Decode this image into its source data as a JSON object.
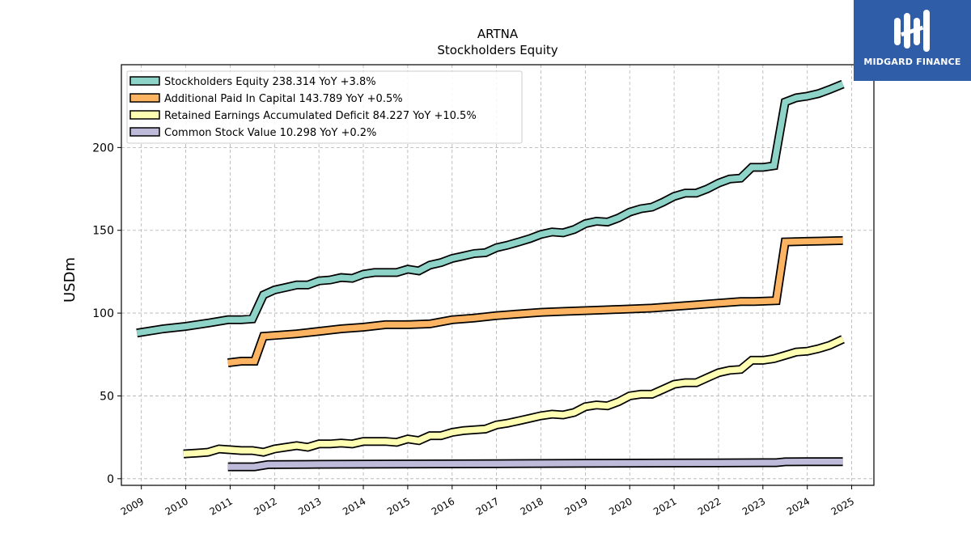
{
  "chart_data": {
    "type": "line",
    "title": "ARTNA",
    "subtitle": "Stockholders  Equity",
    "xlabel": "",
    "ylabel": "USDm",
    "xlim": [
      2008.55,
      2025.5
    ],
    "ylim": [
      -4,
      250
    ],
    "yticks": [
      0,
      50,
      100,
      150,
      200
    ],
    "xticks": [
      "2009",
      "2010",
      "2011",
      "2012",
      "2013",
      "2014",
      "2015",
      "2016",
      "2017",
      "2018",
      "2019",
      "2020",
      "2021",
      "2022",
      "2023",
      "2024",
      "2025"
    ],
    "grid": true,
    "legend_position": "top-left",
    "series": [
      {
        "name": "Stockholders Equity",
        "legend": "Stockholders Equity  238.314 YoY +3.8%",
        "color": "#8dd3c7",
        "x": [
          2008.9,
          2009.5,
          2010.0,
          2010.5,
          2010.95,
          2011.25,
          2011.5,
          2011.75,
          2012.0,
          2012.25,
          2012.5,
          2012.75,
          2013.0,
          2013.25,
          2013.5,
          2013.75,
          2014.0,
          2014.25,
          2014.5,
          2014.75,
          2015.0,
          2015.25,
          2015.5,
          2015.75,
          2016.0,
          2016.25,
          2016.5,
          2016.75,
          2017.0,
          2017.25,
          2017.5,
          2017.75,
          2018.0,
          2018.25,
          2018.5,
          2018.75,
          2019.0,
          2019.25,
          2019.5,
          2019.75,
          2020.0,
          2020.25,
          2020.5,
          2020.75,
          2021.0,
          2021.25,
          2021.5,
          2021.75,
          2022.0,
          2022.25,
          2022.5,
          2022.75,
          2023.0,
          2023.25,
          2023.5,
          2023.75,
          2024.0,
          2024.25,
          2024.5,
          2024.8
        ],
        "values": [
          88,
          90.5,
          92,
          94,
          96,
          96,
          96.5,
          111,
          114,
          115.5,
          117,
          117,
          119.5,
          120,
          121.5,
          121,
          123.5,
          124.5,
          124.5,
          124.5,
          126.5,
          125.5,
          129,
          130.5,
          133,
          134.5,
          136,
          136.5,
          139.5,
          141,
          143,
          145,
          147.5,
          149,
          148.5,
          150.5,
          154,
          155.5,
          155,
          157.5,
          161,
          163,
          164,
          167,
          170.5,
          172.5,
          172.5,
          175,
          178.5,
          181,
          181.5,
          188,
          188,
          189,
          227.5,
          230,
          231,
          232.5,
          235,
          238.3
        ]
      },
      {
        "name": "Additional Paid In Capital",
        "legend": "Additional Paid In Capital  143.789 YoY +0.5%",
        "color": "#fdb462",
        "x": [
          2010.95,
          2011.25,
          2011.55,
          2011.75,
          2012.0,
          2012.5,
          2013.0,
          2013.5,
          2014.0,
          2014.5,
          2015.0,
          2015.5,
          2016.0,
          2016.5,
          2017.0,
          2017.5,
          2018.0,
          2018.5,
          2019.0,
          2019.5,
          2020.0,
          2020.5,
          2021.0,
          2021.5,
          2022.0,
          2022.5,
          2022.8,
          2023.3,
          2023.5,
          2024.0,
          2024.8
        ],
        "values": [
          70,
          71,
          71,
          86,
          86.5,
          87.5,
          89,
          90.5,
          91.5,
          93,
          93,
          93.5,
          96,
          97,
          98.5,
          99.5,
          100.5,
          101,
          101.5,
          102,
          102.5,
          103,
          104,
          105,
          106,
          107,
          107,
          107.5,
          143,
          143.3,
          143.8
        ]
      },
      {
        "name": "Retained Earnings Accumulated Deficit",
        "legend": "Retained Earnings Accumulated Deficit  84.227 YoY +10.5%",
        "color": "#ffffb3",
        "x": [
          2009.95,
          2010.25,
          2010.5,
          2010.75,
          2011.0,
          2011.25,
          2011.5,
          2011.75,
          2012.0,
          2012.25,
          2012.5,
          2012.75,
          2013.0,
          2013.25,
          2013.5,
          2013.75,
          2014.0,
          2014.25,
          2014.5,
          2014.75,
          2015.0,
          2015.25,
          2015.5,
          2015.75,
          2016.0,
          2016.25,
          2016.5,
          2016.75,
          2017.0,
          2017.25,
          2017.5,
          2017.75,
          2018.0,
          2018.25,
          2018.5,
          2018.75,
          2019.0,
          2019.25,
          2019.5,
          2019.75,
          2020.0,
          2020.25,
          2020.5,
          2020.75,
          2021.0,
          2021.25,
          2021.5,
          2021.75,
          2022.0,
          2022.25,
          2022.5,
          2022.75,
          2023.0,
          2023.25,
          2023.5,
          2023.75,
          2024.0,
          2024.25,
          2024.5,
          2024.8
        ],
        "values": [
          15,
          15.5,
          16,
          18,
          17.5,
          17,
          17,
          16,
          18,
          19,
          20,
          19,
          21,
          21,
          21.5,
          21,
          22.5,
          22.5,
          22.5,
          22,
          24,
          23,
          26,
          26,
          28,
          29,
          29.5,
          30,
          32.5,
          33.5,
          35,
          36.5,
          38,
          39,
          38.5,
          40,
          43.5,
          44.5,
          44,
          46.5,
          50,
          51,
          51,
          54,
          57,
          58,
          58,
          61,
          64,
          65.5,
          66,
          71.5,
          71.5,
          72.5,
          74.5,
          76.5,
          77,
          78.5,
          80.5,
          84.2
        ]
      },
      {
        "name": "Common Stock Value",
        "legend": "Common Stock Value  10.298 YoY +0.2%",
        "color": "#bebada",
        "x": [
          2010.95,
          2011.25,
          2011.55,
          2011.85,
          2013.0,
          2015.0,
          2017.0,
          2019.0,
          2021.0,
          2023.0,
          2023.3,
          2023.5,
          2024.0,
          2024.8
        ],
        "values": [
          7.2,
          7.2,
          7.2,
          8.5,
          8.7,
          8.9,
          9.1,
          9.3,
          9.5,
          9.7,
          9.7,
          10.2,
          10.25,
          10.3
        ]
      }
    ]
  },
  "branding": {
    "logo_text": "MIDGARD FINANCE",
    "logo_color": "#2f5da8"
  }
}
